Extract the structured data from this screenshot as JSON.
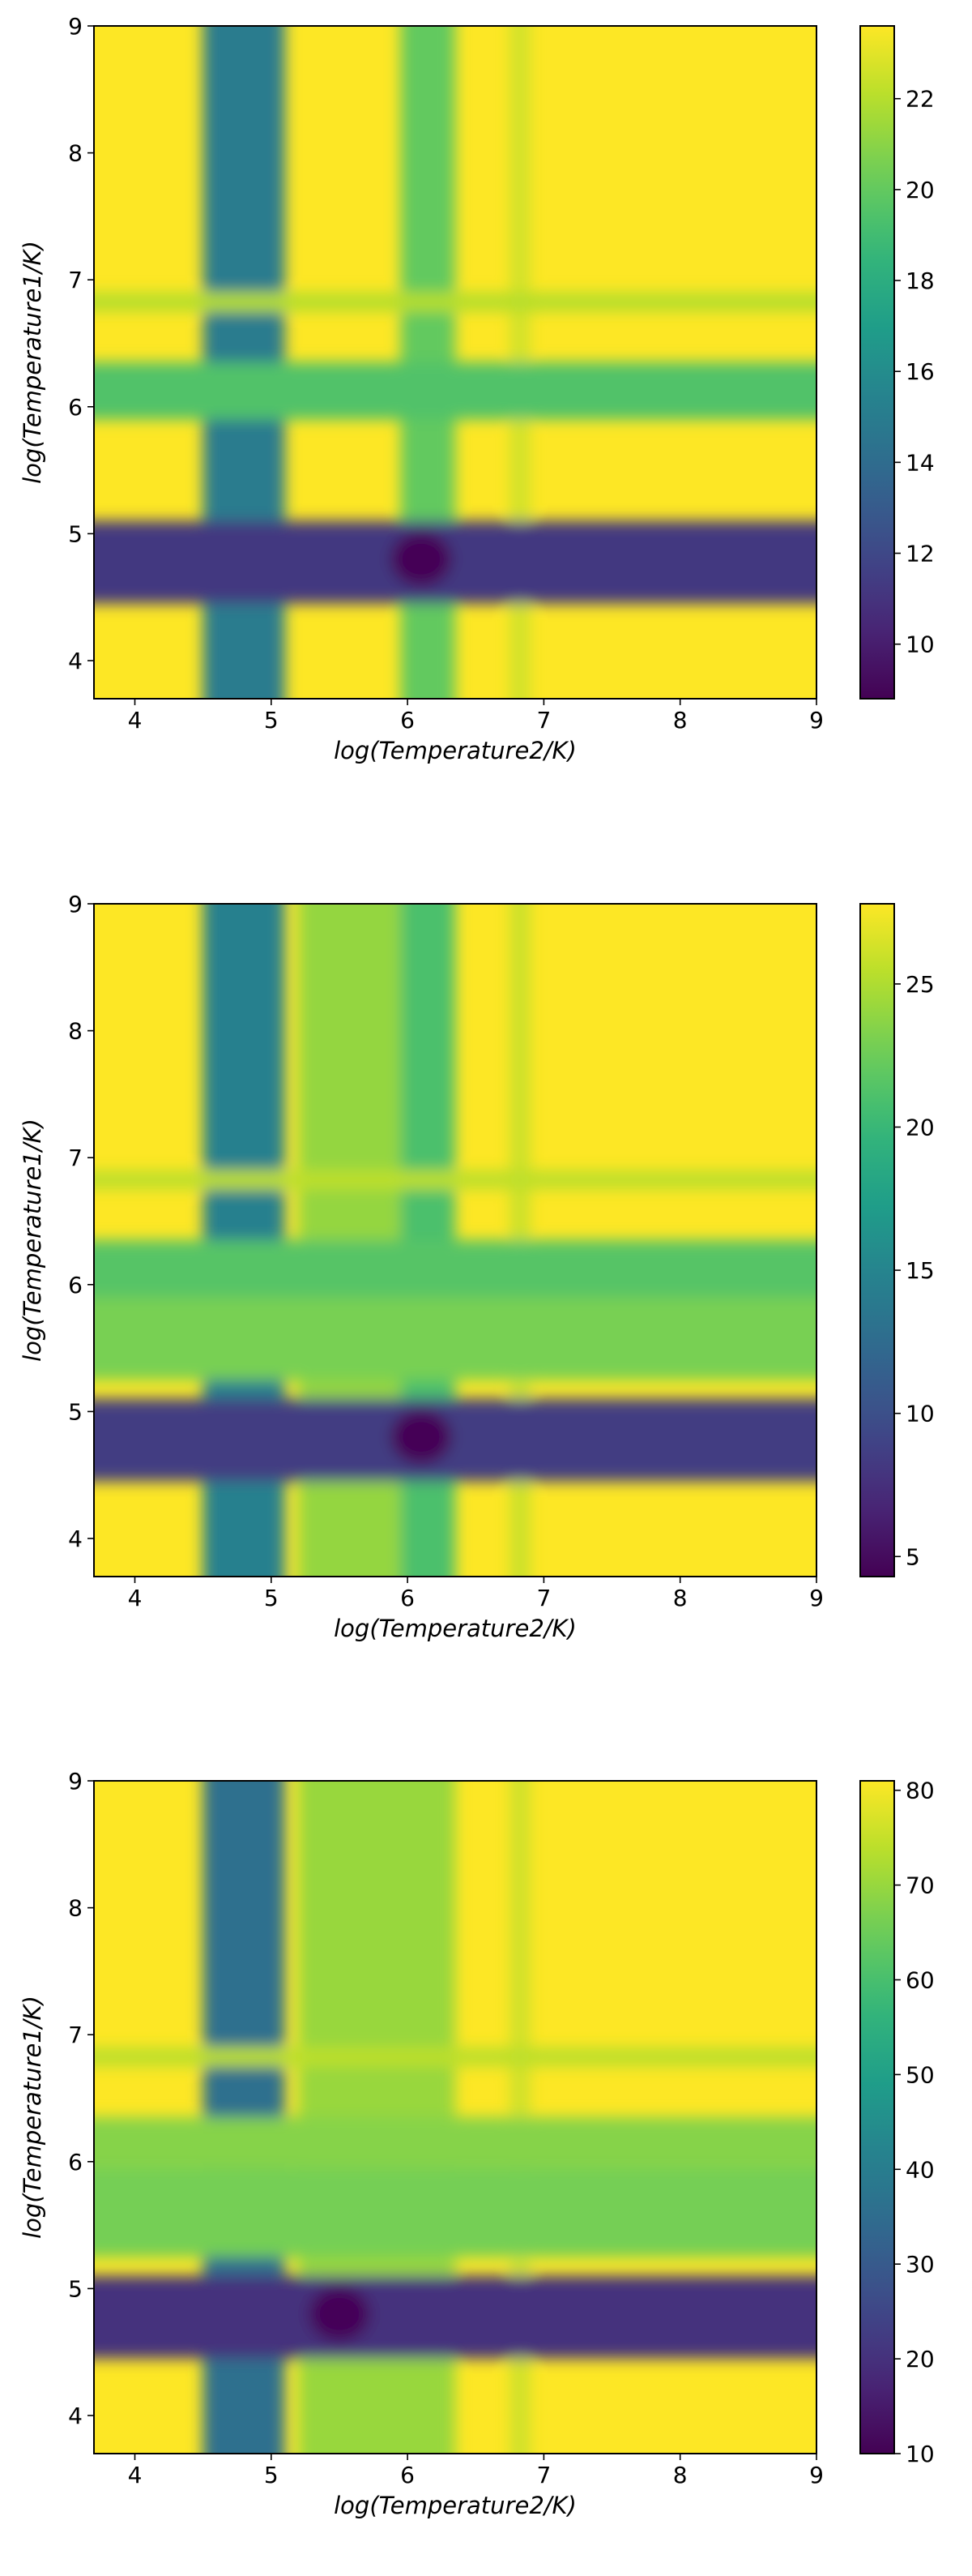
{
  "chart_data": [
    {
      "type": "heatmap",
      "xlabel": "log(Temperature2/K)",
      "ylabel": "log(Temperature1/K)",
      "xlim": [
        3.7,
        9
      ],
      "ylim": [
        3.7,
        9
      ],
      "xticks": [
        "4",
        "5",
        "6",
        "7",
        "8",
        "9"
      ],
      "yticks": [
        "4",
        "5",
        "6",
        "7",
        "8",
        "9"
      ],
      "colorscale": "viridis",
      "colorbar": {
        "min": 8.8,
        "max": 23.6,
        "ticks": [
          "10",
          "12",
          "14",
          "16",
          "18",
          "20",
          "22"
        ]
      },
      "bands": {
        "row": [
          {
            "from": 4.45,
            "to": 5.1,
            "value": 11.2
          },
          {
            "from": 5.9,
            "to": 6.35,
            "value": 19.5
          },
          {
            "from": 6.75,
            "to": 6.9,
            "value": 22.0
          }
        ],
        "col": [
          {
            "from": 4.5,
            "to": 5.1,
            "value": 15.0
          },
          {
            "from": 5.95,
            "to": 6.35,
            "value": 20.0
          },
          {
            "from": 6.75,
            "to": 6.9,
            "value": 22.6
          }
        ],
        "min_spot": {
          "x": 6.1,
          "y": 4.8,
          "value": 8.9
        }
      }
    },
    {
      "type": "heatmap",
      "xlabel": "log(Temperature2/K)",
      "ylabel": "log(Temperature1/K)",
      "xlim": [
        3.7,
        9
      ],
      "ylim": [
        3.7,
        9
      ],
      "xticks": [
        "4",
        "5",
        "6",
        "7",
        "8",
        "9"
      ],
      "yticks": [
        "4",
        "5",
        "6",
        "7",
        "8",
        "9"
      ],
      "colorscale": "viridis",
      "colorbar": {
        "min": 4.3,
        "max": 27.8,
        "ticks": [
          "5",
          "10",
          "15",
          "20",
          "25"
        ]
      },
      "bands": {
        "row": [
          {
            "from": 4.45,
            "to": 5.1,
            "value": 8.5
          },
          {
            "from": 5.25,
            "to": 5.9,
            "value": 23.0
          },
          {
            "from": 5.9,
            "to": 6.35,
            "value": 21.5
          },
          {
            "from": 6.75,
            "to": 6.9,
            "value": 25.5
          }
        ],
        "col": [
          {
            "from": 4.5,
            "to": 5.1,
            "value": 14.5
          },
          {
            "from": 5.2,
            "to": 5.95,
            "value": 24.0
          },
          {
            "from": 5.95,
            "to": 6.35,
            "value": 21.0
          },
          {
            "from": 6.75,
            "to": 6.9,
            "value": 26.0
          }
        ],
        "min_spot": {
          "x": 6.1,
          "y": 4.8,
          "value": 4.5
        }
      }
    },
    {
      "type": "heatmap",
      "xlabel": "log(Temperature2/K)",
      "ylabel": "log(Temperature1/K)",
      "xlim": [
        3.7,
        9
      ],
      "ylim": [
        3.7,
        9
      ],
      "xticks": [
        "4",
        "5",
        "6",
        "7",
        "8",
        "9"
      ],
      "yticks": [
        "4",
        "5",
        "6",
        "7",
        "8",
        "9"
      ],
      "colorscale": "viridis",
      "colorbar": {
        "min": 10,
        "max": 81,
        "ticks": [
          "10",
          "20",
          "30",
          "40",
          "50",
          "60",
          "70",
          "80"
        ]
      },
      "bands": {
        "row": [
          {
            "from": 4.45,
            "to": 5.1,
            "value": 20.0
          },
          {
            "from": 5.25,
            "to": 5.95,
            "value": 66.0
          },
          {
            "from": 5.95,
            "to": 6.35,
            "value": 68.0
          },
          {
            "from": 6.75,
            "to": 6.9,
            "value": 74.0
          }
        ],
        "col": [
          {
            "from": 4.5,
            "to": 5.1,
            "value": 36.0
          },
          {
            "from": 5.2,
            "to": 6.35,
            "value": 70.0
          },
          {
            "from": 6.75,
            "to": 6.9,
            "value": 76.0
          }
        ],
        "min_spot": {
          "x": 5.5,
          "y": 4.8,
          "value": 11.0
        }
      }
    }
  ]
}
